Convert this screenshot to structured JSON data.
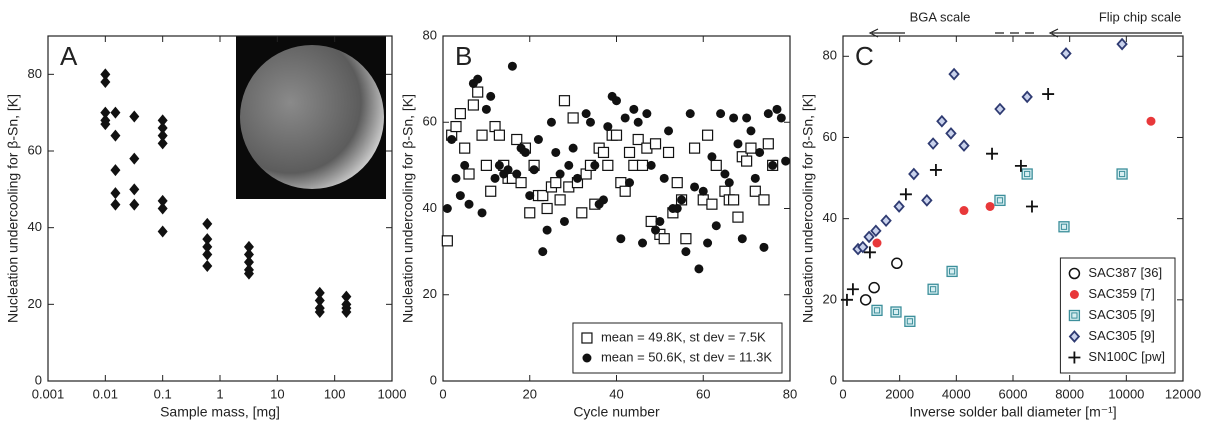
{
  "chart_data": [
    {
      "type": "scatter",
      "title": "A",
      "xlabel": "Sample mass, [mg]",
      "ylabel": "Nucleation undercooling for β-Sn, [K]",
      "xscale": "log",
      "xlim": [
        0.001,
        1000
      ],
      "xticks": [
        0.001,
        0.01,
        0.1,
        1,
        10,
        100,
        1000
      ],
      "ylim": [
        0,
        90
      ],
      "yticks": [
        0,
        20,
        40,
        60,
        80
      ],
      "color": "#111111",
      "marker": "diamond",
      "x": [
        0.01,
        0.01,
        0.01,
        0.01,
        0.01,
        0.015,
        0.015,
        0.015,
        0.015,
        0.015,
        0.032,
        0.032,
        0.032,
        0.032,
        0.1,
        0.1,
        0.1,
        0.1,
        0.1,
        0.1,
        0.1,
        0.6,
        0.6,
        0.6,
        0.6,
        0.6,
        3.2,
        3.2,
        3.2,
        3.2,
        3.2,
        55,
        55,
        55,
        55,
        160,
        160,
        160,
        160
      ],
      "values": [
        80,
        78,
        70,
        68,
        67,
        70,
        64,
        55,
        49,
        46,
        69,
        58,
        50,
        46,
        68,
        66,
        64,
        62,
        47,
        45,
        39,
        41,
        37,
        35,
        33,
        30,
        35,
        33,
        31,
        29,
        28,
        23,
        21,
        19,
        18,
        22,
        20,
        19,
        18
      ]
    },
    {
      "type": "scatter",
      "title": "B",
      "xlabel": "Cycle number",
      "ylabel": "Nucleation undercooling for β-Sn, [K]",
      "xlim": [
        0,
        80
      ],
      "xticks": [
        0,
        20,
        40,
        60,
        80
      ],
      "ylim": [
        0,
        80
      ],
      "yticks": [
        0,
        20,
        40,
        60,
        80
      ],
      "legend": "lower right",
      "series": [
        {
          "name": "mean = 49.8K, st dev = 7.5K",
          "color": "#111111",
          "marker": "square-open",
          "x": [
            1,
            2,
            3,
            4,
            5,
            6,
            7,
            8,
            9,
            10,
            11,
            12,
            13,
            14,
            15,
            16,
            17,
            18,
            19,
            20,
            21,
            22,
            23,
            24,
            25,
            26,
            27,
            28,
            29,
            30,
            31,
            32,
            33,
            34,
            35,
            36,
            37,
            38,
            39,
            40,
            41,
            42,
            43,
            44,
            45,
            46,
            47,
            48,
            49,
            50,
            51,
            52,
            53,
            54,
            55,
            56,
            58,
            60,
            61,
            62,
            63,
            65,
            66,
            67,
            68,
            69,
            70,
            71,
            72,
            74,
            75,
            76
          ],
          "values": [
            32.5,
            57,
            59,
            62,
            54,
            48,
            64,
            67,
            57,
            50,
            44,
            59,
            57,
            50,
            47,
            47,
            56,
            46,
            54,
            39,
            50,
            43,
            43,
            40,
            45,
            46,
            42,
            65,
            45,
            61,
            46,
            39,
            48,
            50,
            41,
            54,
            53,
            50,
            57,
            57,
            46,
            44,
            53,
            50,
            56,
            50,
            54,
            37,
            55,
            34,
            33,
            53,
            39,
            46,
            42,
            33,
            54,
            42,
            57,
            41,
            50,
            44,
            42,
            42,
            38,
            52,
            51,
            54,
            44,
            42,
            55,
            50
          ]
        },
        {
          "name": "mean = 50.6K, st dev = 11.3K",
          "color": "#111111",
          "marker": "circle",
          "x": [
            1,
            2,
            3,
            4,
            5,
            6,
            7,
            8,
            9,
            10,
            11,
            12,
            13,
            14,
            15,
            16,
            17,
            18,
            19,
            20,
            21,
            22,
            23,
            24,
            25,
            26,
            27,
            28,
            29,
            30,
            31,
            33,
            34,
            35,
            36,
            37,
            38,
            39,
            40,
            41,
            42,
            43,
            44,
            45,
            46,
            47,
            48,
            49,
            50,
            51,
            52,
            53,
            54,
            55,
            56,
            57,
            58,
            59,
            60,
            61,
            62,
            63,
            64,
            65,
            66,
            67,
            68,
            69,
            70,
            71,
            72,
            73,
            74,
            75,
            76,
            77,
            78,
            79
          ],
          "values": [
            40,
            56,
            47,
            43,
            50,
            41,
            69,
            70,
            39,
            63,
            66,
            47,
            50,
            48,
            49,
            73,
            48,
            54,
            53,
            43,
            49,
            56,
            30,
            35,
            60,
            53,
            48,
            37,
            50,
            54,
            47,
            62,
            60,
            50,
            41,
            42,
            59,
            66,
            65,
            33,
            61,
            46,
            63,
            60,
            32,
            62,
            50,
            35,
            37,
            47,
            58,
            40,
            40,
            42,
            30,
            62,
            45,
            26,
            44,
            32,
            52,
            36,
            62,
            48,
            46,
            61,
            55,
            33,
            61,
            58,
            47,
            53,
            31,
            62,
            50,
            63,
            61,
            51
          ]
        }
      ]
    },
    {
      "type": "scatter",
      "title": "C",
      "xlabel": "Inverse solder ball diameter [m⁻¹]",
      "ylabel": "Nucleation undercooling for β-Sn, [K]",
      "xlim": [
        0,
        12000
      ],
      "xticks": [
        0,
        2000,
        4000,
        6000,
        8000,
        10000,
        12000
      ],
      "ylim": [
        0,
        85
      ],
      "yticks": [
        0,
        20,
        40,
        60,
        80
      ],
      "legend": "lower right",
      "annotations": [
        "BGA scale",
        "Flip chip scale"
      ],
      "series": [
        {
          "name": "SAC387 [36]",
          "color": "#111111",
          "marker": "circle-open",
          "x": [
            800,
            1100,
            1900
          ],
          "values": [
            20,
            23,
            29
          ]
        },
        {
          "name": "SAC359 [7]",
          "color": "#e8383a",
          "marker": "circle",
          "x": [
            1200,
            4270,
            5190,
            10870
          ],
          "values": [
            34,
            42,
            43,
            64
          ]
        },
        {
          "name": "SAC305 [9]",
          "color": "#3d8f9b",
          "marker": "square-double",
          "x": [
            1200,
            1870,
            2360,
            3180,
            3850,
            5540,
            6500,
            7800,
            9850
          ],
          "values": [
            17.4,
            17,
            14.7,
            22.6,
            27,
            44.5,
            51,
            38,
            51
          ]
        },
        {
          "name": "SAC305 [9]",
          "color": "#2f3b72",
          "marker": "diamond-open",
          "x": [
            530,
            700,
            920,
            1160,
            1520,
            1980,
            2500,
            2960,
            3180,
            3490,
            3810,
            4270,
            3920,
            5540,
            6500,
            7870,
            9850
          ],
          "values": [
            32.5,
            33,
            35.5,
            37,
            39.5,
            43,
            51,
            44.5,
            58.5,
            64,
            61,
            58,
            75.6,
            67,
            70,
            80.7,
            83
          ]
        },
        {
          "name": "SN100C [pw]",
          "color": "#111111",
          "marker": "plus",
          "x": [
            140,
            350,
            950,
            2220,
            3280,
            5260,
            6280,
            6670,
            7240
          ],
          "values": [
            20,
            22.6,
            31.7,
            46,
            52,
            56,
            53,
            43,
            70.7
          ]
        }
      ]
    }
  ]
}
